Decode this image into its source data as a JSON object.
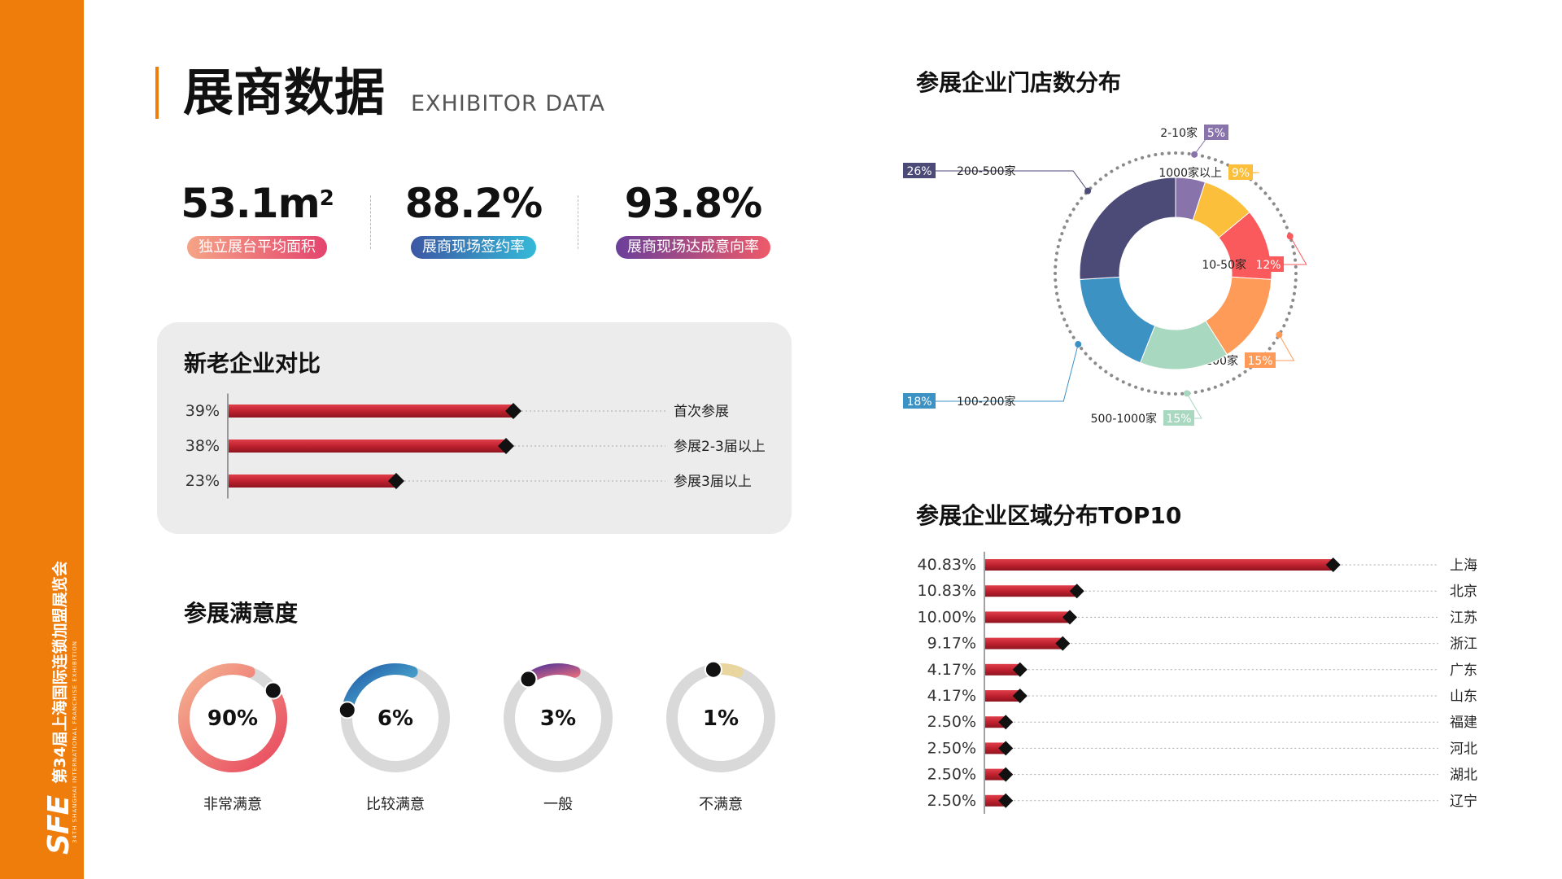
{
  "sidebar": {
    "logo": "SFE",
    "main_text": "第34届上海国际连锁加盟展览会",
    "sub_text": "34TH SHANGHAI INTERNATIONAL FRANCHISE EXHIBITION"
  },
  "header": {
    "title": "展商数据",
    "subtitle": "EXHIBITOR DATA"
  },
  "stats": [
    {
      "value": "53.1m",
      "sup": "2",
      "label": "独立展台平均面积",
      "colors": [
        "#f5a487",
        "#e4456d"
      ]
    },
    {
      "value": "88.2%",
      "sup": "",
      "label": "展商现场签约率",
      "colors": [
        "#3c57a4",
        "#35b9d8"
      ]
    },
    {
      "value": "93.8%",
      "sup": "",
      "label": "展商现场达成意向率",
      "colors": [
        "#6a3f9a",
        "#ee5a6a"
      ]
    }
  ],
  "colors": {
    "accent": "#ef7d0b",
    "bar_red": "#c0212f",
    "gauge_track": "#d9d9d9"
  },
  "chart_data": [
    {
      "type": "bar",
      "orientation": "horizontal",
      "title": "新老企业对比",
      "categories": [
        "首次参展",
        "参展2-3届以上",
        "参展3届以上"
      ],
      "values": [
        39,
        38,
        23
      ],
      "value_labels": [
        "39%",
        "38%",
        "23%"
      ],
      "unit": "%"
    },
    {
      "type": "pie",
      "variant": "donut",
      "title": "参展企业门店数分布",
      "slices": [
        {
          "label": "2-10家",
          "value": 5,
          "pct": "5%",
          "color": "#8874ab"
        },
        {
          "label": "1000家以上",
          "value": 9,
          "pct": "9%",
          "color": "#fcbf3c"
        },
        {
          "label": "10-50家",
          "value": 12,
          "pct": "12%",
          "color": "#fa5a5b"
        },
        {
          "label": "50-100家",
          "value": 15,
          "pct": "15%",
          "color": "#fe9b58"
        },
        {
          "label": "500-1000家",
          "value": 15,
          "pct": "15%",
          "color": "#a8d8bf"
        },
        {
          "label": "100-200家",
          "value": 18,
          "pct": "18%",
          "color": "#3b92c3"
        },
        {
          "label": "200-500家",
          "value": 26,
          "pct": "26%",
          "color": "#4c4b78"
        }
      ]
    },
    {
      "type": "bar",
      "orientation": "horizontal",
      "title": "参展企业区域分布TOP10",
      "categories": [
        "上海",
        "北京",
        "江苏",
        "浙江",
        "广东",
        "山东",
        "福建",
        "河北",
        "湖北",
        "辽宁"
      ],
      "values": [
        40.83,
        10.83,
        10.0,
        9.17,
        4.17,
        4.17,
        2.5,
        2.5,
        2.5,
        2.5
      ],
      "value_labels": [
        "40.83%",
        "10.83%",
        "10.00%",
        "9.17%",
        "4.17%",
        "4.17%",
        "2.50%",
        "2.50%",
        "2.50%",
        "2.50%"
      ],
      "unit": "%"
    },
    {
      "type": "pie",
      "variant": "gauge",
      "title": "参展满意度",
      "categories": [
        "非常满意",
        "比较满意",
        "一般",
        "不满意"
      ],
      "values": [
        90,
        6,
        3,
        1
      ],
      "value_labels": [
        "90%",
        "6%",
        "3%",
        "1%"
      ],
      "gradients": [
        [
          "#f5b391",
          "#e8485e"
        ],
        [
          "#1f5ba8",
          "#5ec6dc"
        ],
        [
          "#6a3d96",
          "#f0707a"
        ],
        [
          "#e9d59e",
          "#e9d59e"
        ]
      ]
    }
  ]
}
